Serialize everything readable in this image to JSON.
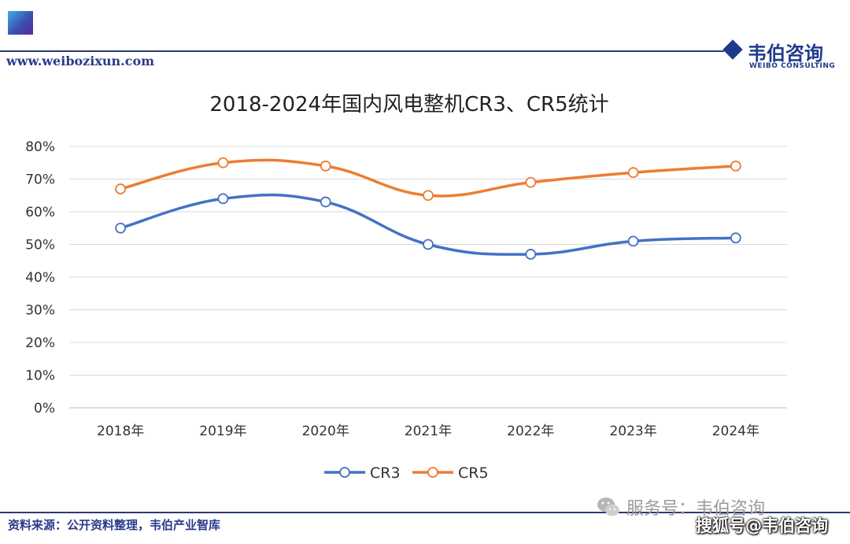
{
  "header": {
    "site_url": "www.weibozixun.com",
    "brand_cn": "韦伯咨询",
    "brand_en": "WEIBO CONSULTING"
  },
  "footer": {
    "source": "资料来源：公开资料整理，韦伯产业智库",
    "service_account": "服务号：韦伯咨询",
    "sohu_watermark": "搜狐号@韦伯咨询"
  },
  "colors": {
    "brand_blue": "#2b3a8a",
    "cr3": "#4472c4",
    "cr5": "#ed7d31",
    "grid": "#d9d9d9"
  },
  "chart_data": {
    "type": "line",
    "title": "2018-2024年国内风电整机CR3、CR5统计",
    "categories": [
      "2018年",
      "2019年",
      "2020年",
      "2021年",
      "2022年",
      "2023年",
      "2024年"
    ],
    "series": [
      {
        "name": "CR3",
        "values": [
          55,
          64,
          63,
          50,
          47,
          51,
          52
        ],
        "color": "#4472c4"
      },
      {
        "name": "CR5",
        "values": [
          67,
          75,
          74,
          65,
          69,
          72,
          74
        ],
        "color": "#ed7d31"
      }
    ],
    "yticks": [
      "0%",
      "10%",
      "20%",
      "30%",
      "40%",
      "50%",
      "60%",
      "70%",
      "80%"
    ],
    "ylim": [
      0,
      80
    ],
    "grid": true,
    "legend_position": "bottom",
    "smooth": true
  }
}
